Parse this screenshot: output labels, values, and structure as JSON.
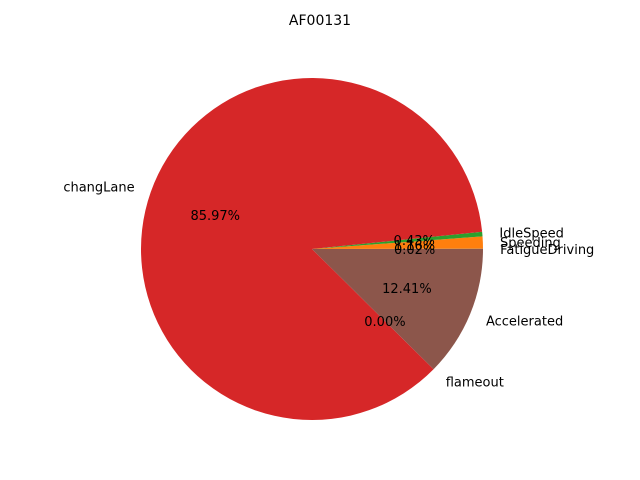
{
  "chart_data": {
    "type": "pie",
    "title": "AF00131",
    "slices": [
      {
        "name": "FatigueDriving",
        "value": 0.02,
        "pct_label": "0.02%",
        "color": "#1f77b4"
      },
      {
        "name": "Speeding",
        "value": 1.16,
        "pct_label": "1.16%",
        "color": "#ff7f0e"
      },
      {
        "name": "IdleSpeed",
        "value": 0.43,
        "pct_label": "0.43%",
        "color": "#2ca02c"
      },
      {
        "name": "changLane",
        "value": 85.97,
        "pct_label": "85.97%",
        "color": "#d62728"
      },
      {
        "name": "flameout",
        "value": 0.005,
        "pct_label": "0.00%",
        "color": "#9467bd"
      },
      {
        "name": "Accelerated",
        "value": 12.41,
        "pct_label": "12.41%",
        "color": "#8c564b"
      }
    ],
    "start_angle_deg": 0,
    "direction": "counterclockwise",
    "legend": "none"
  }
}
